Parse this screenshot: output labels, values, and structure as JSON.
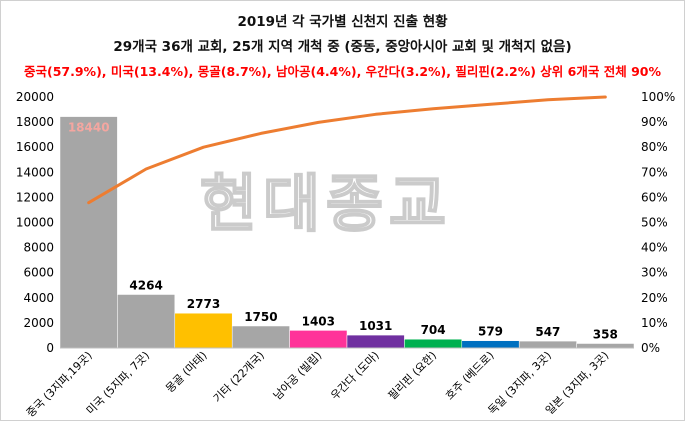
{
  "titles": {
    "line1": "2019년 각 국가별 신천지 진출 현황",
    "line2": "29개국 36개 교회, 25개 지역 개척 중 (중동, 중앙아시아 교회 및 개척지 없음)",
    "line3": "중국(57.9%), 미국(13.4%), 몽골(8.7%), 남아공(4.4%), 우간다(3.2%), 필리핀(2.2%) 상위 6개국 전체 90%"
  },
  "watermark": "현대종교",
  "chart_data": {
    "type": "bar",
    "categories": [
      "중국 (3지파,19곳)",
      "미국 (5지파, 7곳)",
      "몽골 (마태)",
      "기타 (22개국)",
      "남아공 (빌립)",
      "우간다 (도마)",
      "필리핀 (요한)",
      "호주 (베드로)",
      "독일 (3지파, 3곳)",
      "일본 (3지파, 3곳)"
    ],
    "series": [
      {
        "values": [
          18440,
          4264,
          2773,
          1750,
          1403,
          1031,
          704,
          579,
          547,
          358
        ],
        "labels": [
          "18440",
          "4264",
          "2773",
          "1750",
          "1403",
          "1031",
          "704",
          "579",
          "547",
          "358"
        ],
        "colors": [
          "#a6a6a6",
          "#a6a6a6",
          "#ffc000",
          "#a6a6a6",
          "#ff3399",
          "#7030a0",
          "#00b050",
          "#0070c0",
          "#a6a6a6",
          "#a6a6a6"
        ]
      },
      {
        "type": "line",
        "axis": "right",
        "color": "#ed7d31",
        "values": [
          57.9,
          71.3,
          80.0,
          85.5,
          89.9,
          93.1,
          95.3,
          97.1,
          98.9,
          100.0
        ]
      }
    ],
    "left_axis": {
      "ylim": [
        0,
        20000
      ],
      "ticks": [
        "0",
        "2000",
        "4000",
        "6000",
        "8000",
        "10000",
        "12000",
        "14000",
        "16000",
        "18000",
        "20000"
      ]
    },
    "right_axis": {
      "ylim": [
        0,
        100
      ],
      "ticks": [
        "0%",
        "10%",
        "20%",
        "30%",
        "40%",
        "50%",
        "60%",
        "70%",
        "80%",
        "90%",
        "100%"
      ]
    },
    "grid": false,
    "legend": "none",
    "first_label_color": "#f4a6a0"
  }
}
